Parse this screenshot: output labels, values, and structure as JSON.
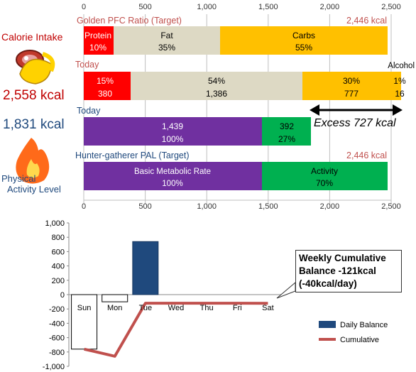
{
  "top_panel": {
    "axis_ticks": [
      "0",
      "500",
      "1,000",
      "1,500",
      "2,000",
      "2,500"
    ],
    "calorie_intake_label": "Calorie Intake",
    "calorie_intake_value": "2,558 kcal",
    "activity_value": "1,831 kcal",
    "activity_label_line1": "Physical",
    "activity_label_line2": "Activity Level",
    "row1": {
      "title": "Golden PFC Ratio (Target)",
      "total": "2,446 kcal",
      "seg": [
        {
          "name": "Protein",
          "pct": "10%"
        },
        {
          "name": "Fat",
          "pct": "35%"
        },
        {
          "name": "Carbs",
          "pct": "55%"
        }
      ]
    },
    "row2": {
      "title": "Today",
      "alcohol_label": "Alcohol",
      "seg": [
        {
          "pct": "15%",
          "kcal": "380"
        },
        {
          "pct": "54%",
          "kcal": "1,386"
        },
        {
          "pct": "30%",
          "kcal": "777"
        },
        {
          "pct": "1%",
          "kcal": "16"
        }
      ]
    },
    "row3": {
      "title": "Today",
      "excess": "Excess 727 kcal",
      "seg": [
        {
          "kcal": "1,439",
          "pct": "100%"
        },
        {
          "kcal": "392",
          "pct": "27%"
        }
      ]
    },
    "row4": {
      "title": "Hunter-gatherer  PAL (Target)",
      "total": "2,446 kcal",
      "seg": [
        {
          "name": "Basic Metabolic Rate",
          "pct": "100%"
        },
        {
          "name": "Activity",
          "pct": "70%"
        }
      ]
    }
  },
  "colors": {
    "protein": "#ff0000",
    "fat": "#ddd9c4",
    "carbs": "#ffc000",
    "bmr": "#7030a0",
    "activity": "#00b050",
    "daily": "#1f497d",
    "cumulative": "#c0504d",
    "red_text": "#c0504d",
    "blue_text": "#1f497d"
  },
  "chart_data": [
    {
      "type": "bar",
      "orientation": "horizontal-stacked",
      "x_ticks": [
        0,
        500,
        1000,
        1500,
        2000,
        2500
      ],
      "xlim": [
        0,
        2500
      ],
      "rows": [
        {
          "label": "Golden PFC Ratio (Target)",
          "segments": [
            {
              "name": "Protein",
              "value": 245
            },
            {
              "name": "Fat",
              "value": 856
            },
            {
              "name": "Carbs",
              "value": 1345
            }
          ]
        },
        {
          "label": "Today",
          "segments": [
            {
              "name": "Protein",
              "value": 380
            },
            {
              "name": "Fat",
              "value": 1386
            },
            {
              "name": "Carbs",
              "value": 777
            },
            {
              "name": "Alcohol",
              "value": 16
            }
          ]
        },
        {
          "label": "Today",
          "segments": [
            {
              "name": "Basic Metabolic Rate",
              "value": 1439
            },
            {
              "name": "Activity",
              "value": 392
            }
          ]
        },
        {
          "label": "Hunter-gatherer  PAL (Target)",
          "segments": [
            {
              "name": "Basic Metabolic Rate",
              "value": 1439
            },
            {
              "name": "Activity",
              "value": 1007
            }
          ]
        }
      ]
    },
    {
      "type": "bar",
      "categories": [
        "Sun",
        "Mon",
        "Tue",
        "Wed",
        "Thu",
        "Fri",
        "Sat"
      ],
      "ylim": [
        -1000,
        1000
      ],
      "y_ticks": [
        "1,000",
        "800",
        "600",
        "400",
        "200",
        "0",
        "-200",
        "-400",
        "-600",
        "-800",
        "-1,000"
      ],
      "series": [
        {
          "name": "Daily Balance",
          "type": "bar",
          "values": [
            -760,
            -100,
            740,
            0,
            0,
            0,
            0
          ]
        },
        {
          "name": "Cumulative",
          "type": "line",
          "values": [
            -760,
            -860,
            -120,
            -120,
            -120,
            -120,
            -121
          ]
        }
      ],
      "legend": "bottom-right",
      "annotation": "Weekly Cumulative Balance -121kcal (-40kcal/day)"
    }
  ]
}
